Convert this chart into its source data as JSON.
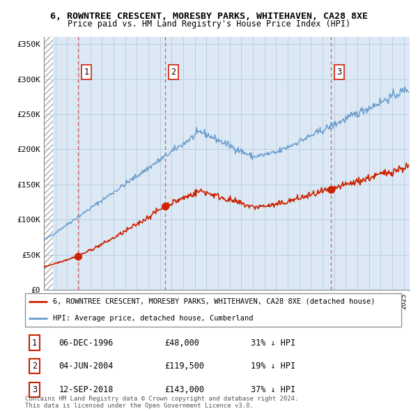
{
  "title1": "6, ROWNTREE CRESCENT, MORESBY PARKS, WHITEHAVEN, CA28 8XE",
  "title2": "Price paid vs. HM Land Registry's House Price Index (HPI)",
  "ylabel_ticks": [
    "£0",
    "£50K",
    "£100K",
    "£150K",
    "£200K",
    "£250K",
    "£300K",
    "£350K"
  ],
  "ytick_values": [
    0,
    50000,
    100000,
    150000,
    200000,
    250000,
    300000,
    350000
  ],
  "ylim": [
    0,
    360000
  ],
  "xlim_start": 1994.0,
  "xlim_end": 2025.5,
  "hatch_end": 1994.75,
  "sales": [
    {
      "date_num": 1996.93,
      "price": 48000,
      "label": "1"
    },
    {
      "date_num": 2004.43,
      "price": 119500,
      "label": "2"
    },
    {
      "date_num": 2018.71,
      "price": 143000,
      "label": "3"
    }
  ],
  "sale_info": [
    {
      "num": "1",
      "date": "06-DEC-1996",
      "price": "£48,000",
      "hpi": "31% ↓ HPI"
    },
    {
      "num": "2",
      "date": "04-JUN-2004",
      "price": "£119,500",
      "hpi": "19% ↓ HPI"
    },
    {
      "num": "3",
      "date": "12-SEP-2018",
      "price": "£143,000",
      "hpi": "37% ↓ HPI"
    }
  ],
  "legend_line1": "6, ROWNTREE CRESCENT, MORESBY PARKS, WHITEHAVEN, CA28 8XE (detached house)",
  "legend_line2": "HPI: Average price, detached house, Cumberland",
  "footer": "Contains HM Land Registry data © Crown copyright and database right 2024.\nThis data is licensed under the Open Government Licence v3.0.",
  "hpi_color": "#6699cc",
  "price_color": "#cc2200",
  "bg_color": "#dce9f5",
  "hatch_color": "#c0c0c0",
  "grid_color": "#b8cfe0",
  "vline_color": "#dd4444"
}
